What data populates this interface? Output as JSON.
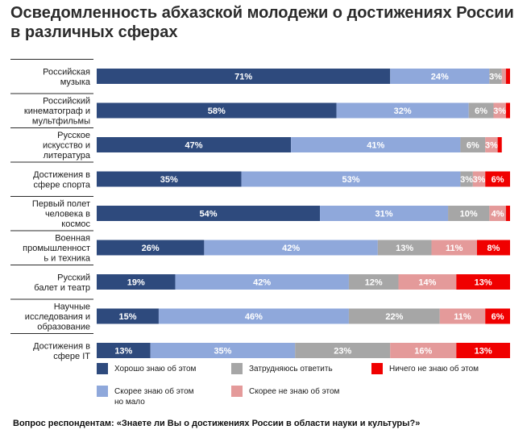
{
  "title": "Осведомленность абхазской молодежи о достижениях России в различных сферах",
  "question": "Вопрос респондентам: «Знаете ли Вы о достижениях России в области науки и культуры?»",
  "chart_data": {
    "type": "bar",
    "orientation": "horizontal",
    "stacked": true,
    "percent_stacked": true,
    "grid": false,
    "legend_position": "bottom",
    "categories": [
      [
        "Российская",
        "музыка"
      ],
      [
        "Российский",
        "кинематограф и",
        "мультфильмы"
      ],
      [
        "Русское",
        "искусство и",
        "литература"
      ],
      [
        "Достижения в",
        "сфере спорта"
      ],
      [
        "Первый полет",
        "человека в",
        "космос"
      ],
      [
        "Военная",
        "промышленност",
        "ь и техника"
      ],
      [
        "Русский",
        "балет и театр"
      ],
      [
        "Научные",
        "исследования и",
        "образование"
      ],
      [
        "Достижения в",
        "сфере IT"
      ]
    ],
    "series": [
      {
        "name": "Хорошо знаю об этом",
        "color": "#2e4a7d",
        "values": [
          71,
          58,
          47,
          35,
          54,
          26,
          19,
          15,
          13
        ],
        "labels": [
          "71%",
          "58%",
          "47%",
          "35%",
          "54%",
          "26%",
          "19%",
          "15%",
          "13%"
        ]
      },
      {
        "name": "Скорее знаю об этом но мало",
        "color": "#8fa8db",
        "values": [
          24,
          32,
          41,
          53,
          31,
          42,
          42,
          46,
          35
        ],
        "labels": [
          "24%",
          "32%",
          "41%",
          "53%",
          "31%",
          "42%",
          "42%",
          "46%",
          "35%"
        ]
      },
      {
        "name": "Затрудняюсь ответить",
        "color": "#a6a6a6",
        "values": [
          3,
          6,
          6,
          3,
          10,
          13,
          12,
          22,
          23
        ],
        "labels": [
          "3%",
          "6%",
          "6%",
          "3%",
          "10%",
          "13%",
          "12%",
          "22%",
          "23%"
        ]
      },
      {
        "name": "Скорее не знаю об этом",
        "color": "#e49a9a",
        "values": [
          1,
          3,
          3,
          3,
          4,
          11,
          14,
          11,
          16
        ],
        "labels": [
          "",
          "3%",
          "3%",
          "3%",
          "4%",
          "11%",
          "14%",
          "11%",
          "16%"
        ]
      },
      {
        "name": "Ничего не знаю об этом",
        "color": "#f00000",
        "values": [
          1,
          1,
          1,
          6,
          1,
          8,
          13,
          6,
          13
        ],
        "labels": [
          "",
          "",
          "",
          "6%",
          "",
          "8%",
          "13%",
          "6%",
          "13%"
        ]
      }
    ],
    "legend": [
      {
        "lines": [
          "Хорошо знаю об этом"
        ],
        "color": "#2e4a7d"
      },
      {
        "lines": [
          "Затрудняюсь ответить"
        ],
        "color": "#a6a6a6"
      },
      {
        "lines": [
          "Ничего не знаю об этом"
        ],
        "color": "#f00000"
      },
      {
        "lines": [
          "Скорее знаю об этом",
          "но мало"
        ],
        "color": "#8fa8db"
      },
      {
        "lines": [
          "Скорее не знаю об этом"
        ],
        "color": "#e49a9a"
      }
    ]
  }
}
